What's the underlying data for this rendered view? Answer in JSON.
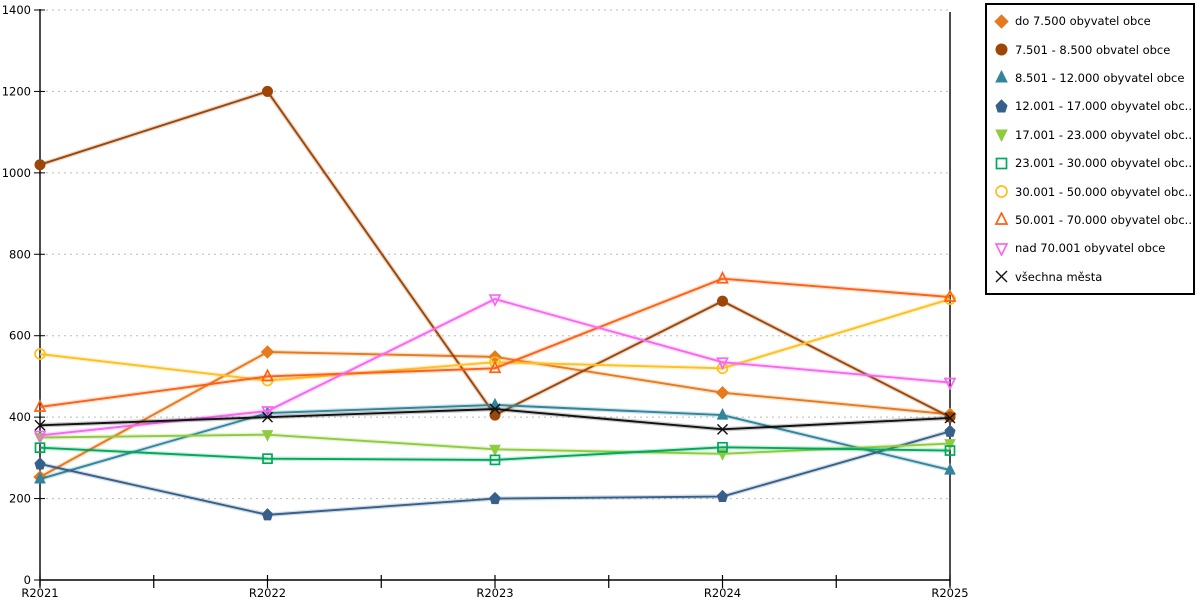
{
  "chart_data": {
    "type": "line",
    "title": "",
    "xlabel": "",
    "ylabel": "",
    "categories": [
      "R2021",
      "R2022",
      "R2023",
      "R2024",
      "R2025"
    ],
    "y_ticks": [
      0,
      200,
      400,
      600,
      800,
      1000,
      1200,
      1400
    ],
    "ylim": [
      0,
      1400
    ],
    "grid": "horizontal-dashed",
    "legend_position": "right",
    "series": [
      {
        "name": "do 7.500 obyvatel obce",
        "marker": "diamond",
        "fill": "filled",
        "color": "#E8791D",
        "values": [
          253,
          560,
          548,
          460,
          407
        ]
      },
      {
        "name": "7.501 - 8.500 obvatel obce",
        "marker": "circle",
        "fill": "filled",
        "color": "#9C4708",
        "values": [
          1020,
          1200,
          405,
          685,
          400
        ]
      },
      {
        "name": "8.501 - 12.000 obyvatel obce",
        "marker": "triangle-up",
        "fill": "filled",
        "color": "#31859C",
        "values": [
          248,
          410,
          430,
          405,
          270
        ]
      },
      {
        "name": "12.001 - 17.000 obyvatel obc...",
        "marker": "pentagon",
        "fill": "filled",
        "color": "#36608A",
        "values": [
          285,
          160,
          200,
          205,
          365
        ]
      },
      {
        "name": "17.001 - 23.000 obyvatel obc...",
        "marker": "triangle-down",
        "fill": "filled",
        "color": "#8FCB3F",
        "values": [
          350,
          357,
          321,
          310,
          335
        ]
      },
      {
        "name": "23.001 - 30.000 obyvatel obc...",
        "marker": "square",
        "fill": "hollow",
        "color": "#00A85A",
        "values": [
          325,
          298,
          295,
          326,
          318
        ]
      },
      {
        "name": "30.001 - 50.000 obyvatel obc...",
        "marker": "circle",
        "fill": "hollow",
        "color": "#FFC01E",
        "values": [
          555,
          490,
          535,
          520,
          690
        ]
      },
      {
        "name": "50.001 - 70.000 obyvatel obc...",
        "marker": "triangle-up",
        "fill": "hollow",
        "color": "#FF6014",
        "values": [
          425,
          500,
          520,
          740,
          695
        ]
      },
      {
        "name": "nad 70.001 obyvatel obce",
        "marker": "triangle-down",
        "fill": "hollow",
        "color": "#F967F2",
        "values": [
          355,
          415,
          690,
          535,
          485
        ]
      },
      {
        "name": "všechna města",
        "marker": "x",
        "fill": "line",
        "color": "#111111",
        "values": [
          380,
          400,
          420,
          370,
          398
        ]
      }
    ],
    "colors": {
      "axis": "#000000",
      "grid": "#BBBBBB",
      "background": "#FFFFFF",
      "tick_label": "#000000"
    }
  }
}
